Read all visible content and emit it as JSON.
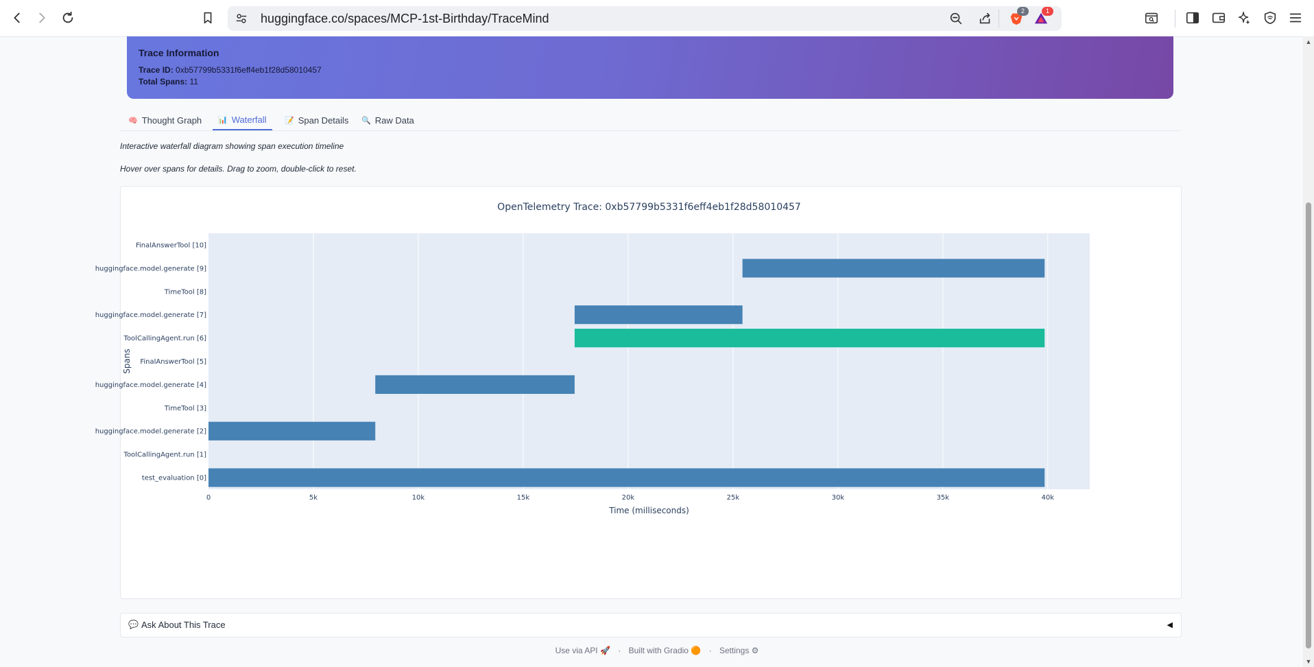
{
  "browser": {
    "url": "huggingface.co/spaces/MCP-1st-Birthday/TraceMind",
    "brave_badge": "2",
    "rewards_badge": "1"
  },
  "trace_info": {
    "title": "Trace Information",
    "trace_id_label": "Trace ID:",
    "trace_id": "0xb57799b5331f6eff4eb1f28d58010457",
    "total_spans_label": "Total Spans:",
    "total_spans": "11"
  },
  "tabs": [
    {
      "icon": "🧠",
      "label": "Thought Graph"
    },
    {
      "icon": "📊",
      "label": "Waterfall"
    },
    {
      "icon": "📝",
      "label": "Span Details"
    },
    {
      "icon": "🔍",
      "label": "Raw Data"
    }
  ],
  "description": {
    "line1": "Interactive waterfall diagram showing span execution timeline",
    "line2": "Hover over spans for details. Drag to zoom, double-click to reset."
  },
  "chart_data": {
    "type": "bar",
    "orientation": "horizontal",
    "title": "OpenTelemetry Trace: 0xb57799b5331f6eff4eb1f28d58010457",
    "xlabel": "Time (milliseconds)",
    "ylabel": "Spans",
    "xlim": [
      0,
      42000
    ],
    "x_ticks": [
      0,
      5000,
      10000,
      15000,
      20000,
      25000,
      30000,
      35000,
      40000
    ],
    "x_tick_labels": [
      "0",
      "5k",
      "10k",
      "15k",
      "20k",
      "25k",
      "30k",
      "35k",
      "40k"
    ],
    "colors": {
      "span": "#4682b4",
      "agent": "#1abc9c",
      "plot_bg": "#e5ecf6",
      "grid": "#ffffff"
    },
    "spans": [
      {
        "name": "test_evaluation [0]",
        "start": 0,
        "end": 39850,
        "kind": "span"
      },
      {
        "name": "ToolCallingAgent.run [1]",
        "start": null,
        "end": null,
        "kind": "span"
      },
      {
        "name": "huggingface.model.generate [2]",
        "start": 0,
        "end": 7950,
        "kind": "span"
      },
      {
        "name": "TimeTool [3]",
        "start": null,
        "end": null,
        "kind": "span"
      },
      {
        "name": "huggingface.model.generate [4]",
        "start": 7950,
        "end": 17450,
        "kind": "span"
      },
      {
        "name": "FinalAnswerTool [5]",
        "start": null,
        "end": null,
        "kind": "span"
      },
      {
        "name": "ToolCallingAgent.run [6]",
        "start": 17450,
        "end": 39850,
        "kind": "agent"
      },
      {
        "name": "huggingface.model.generate [7]",
        "start": 17450,
        "end": 25450,
        "kind": "span"
      },
      {
        "name": "TimeTool [8]",
        "start": null,
        "end": null,
        "kind": "span"
      },
      {
        "name": "huggingface.model.generate [9]",
        "start": 25450,
        "end": 39850,
        "kind": "span"
      },
      {
        "name": "FinalAnswerTool [10]",
        "start": null,
        "end": null,
        "kind": "span"
      }
    ]
  },
  "ask": {
    "emoji": "💬",
    "label": "Ask About This Trace",
    "caret": "◀"
  },
  "footer": {
    "api": "Use via API",
    "api_icon": "🚀",
    "sep": "·",
    "built": "Built with Gradio",
    "built_icon": "🟠",
    "settings": "Settings",
    "settings_icon": "⚙"
  }
}
